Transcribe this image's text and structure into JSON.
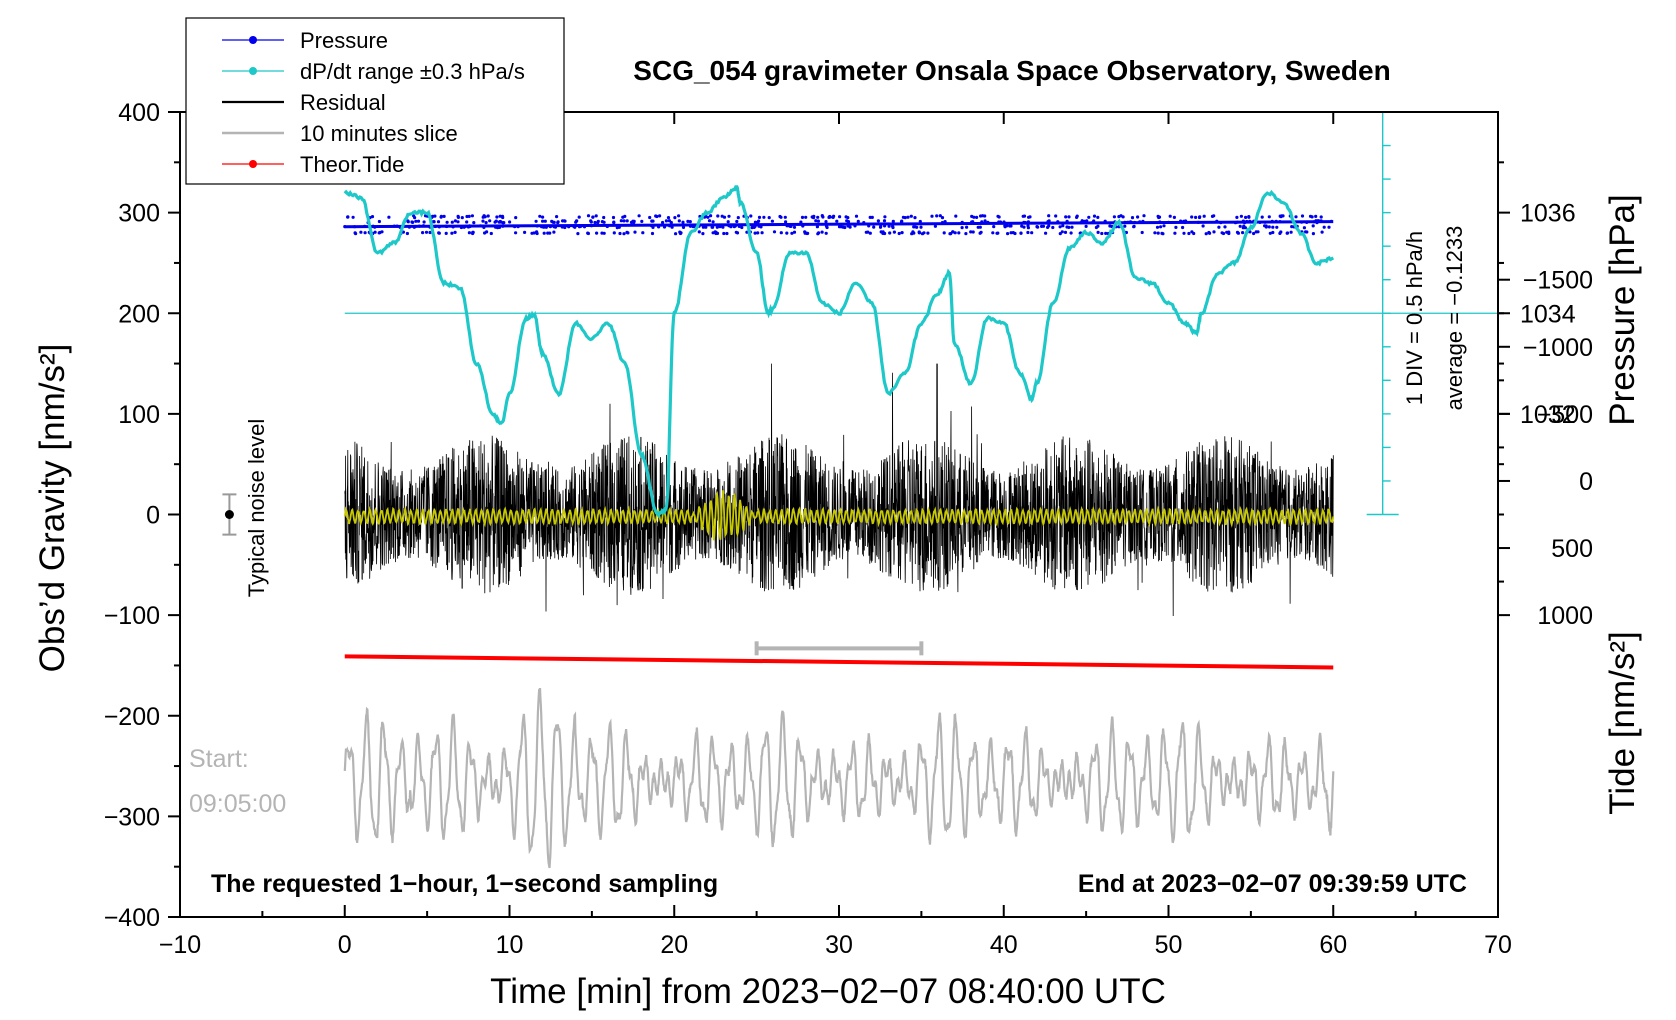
{
  "chart_data": {
    "type": "line",
    "title": "SCG_054 gravimeter Onsala Space Observatory, Sweden",
    "xlabel": "Time [min] from 2023−02−07 08:40:00 UTC",
    "ylabel_left": "Obs’d Gravity [nm/s²]",
    "ylabel_right_top": "Pressure [hPa]",
    "ylabel_right_bottom": "Tide [nm/s²]",
    "xlim": [
      -10,
      70
    ],
    "ylim": [
      -400,
      400
    ],
    "x_ticks": [
      "−10",
      "0",
      "10",
      "20",
      "30",
      "40",
      "50",
      "60",
      "70"
    ],
    "x_tick_values": [
      -10,
      0,
      10,
      20,
      30,
      40,
      50,
      60,
      70
    ],
    "y_ticks": [
      "400",
      "300",
      "200",
      "100",
      "0",
      "−100",
      "−200",
      "−300",
      "−400"
    ],
    "y_tick_values": [
      400,
      300,
      200,
      100,
      0,
      -100,
      -200,
      -300,
      -400
    ],
    "pressure_ticks": [
      "1036",
      "1034",
      "1032"
    ],
    "pressure_tick_values": [
      1036,
      1034,
      1032
    ],
    "pressure_axis_map": {
      "hPa_at_gravity_0": 1030,
      "hPa_per_gravity_unit": 0.02
    },
    "tide_ticks": [
      "1000",
      "500",
      "0",
      "−500",
      "−1000",
      "−1500"
    ],
    "tide_tick_values": [
      1000,
      500,
      0,
      -500,
      -1000,
      -1500
    ],
    "tide_axis_map": {
      "tide_at_gravity_minus100": 1000,
      "tide_per_gravity_unit": 7.5
    },
    "legend": {
      "placement": "top-left",
      "entries": [
        {
          "label": "Pressure",
          "color": "#0000ee",
          "style": "line-dot"
        },
        {
          "label": "dP/dt range ±0.3 hPa/s",
          "color": "#1ec8c8",
          "style": "line-dot"
        },
        {
          "label": "Residual",
          "color": "#000000",
          "style": "line"
        },
        {
          "label": "10 minutes slice",
          "color": "#b4b4b4",
          "style": "line"
        },
        {
          "label": "Theor.Tide",
          "color": "#ff0000",
          "style": "line-dot"
        }
      ]
    },
    "annotations": {
      "bottom_left": "The requested 1−hour, 1−second sampling",
      "bottom_right": "End at 2023−02−07 09:39:59 UTC",
      "start_label": "Start:",
      "start_time": "09:05:00",
      "noise_label": "Typical noise level",
      "dpdt_scale": "1 DIV = 0.5 hPa/h",
      "dpdt_average": "average = −0.1233"
    },
    "noise_bar": {
      "x": -7,
      "center": 0,
      "half_range": 20
    },
    "slice_bar": {
      "x_start": 25,
      "x_end": 35,
      "y": -133
    },
    "dpdt_ref_y": 200,
    "dpdt_scale_axis": {
      "x": 63,
      "y_top": 400,
      "y_bottom": 0,
      "divisions": 12
    },
    "series": [
      {
        "name": "Pressure",
        "color": "#0000ee",
        "y_mean_start": 286,
        "y_mean_end": 291,
        "dot_levels": [
          280,
          286,
          291,
          296
        ]
      },
      {
        "name": "dP/dt range ±0.3 hPa/s",
        "color": "#1ec8c8",
        "x": [
          0,
          1,
          2,
          3,
          4,
          5,
          6,
          7,
          8,
          9,
          9.5,
          10,
          11,
          11.5,
          12,
          13,
          14,
          15,
          16,
          17,
          18,
          19,
          19.5,
          20,
          21,
          22,
          23,
          23.8,
          24,
          25,
          25.7,
          26,
          27,
          28,
          29,
          30,
          31,
          32,
          33,
          34,
          35,
          36,
          36.7,
          37,
          38,
          39,
          40,
          41,
          41.7,
          42,
          43,
          44,
          45,
          46,
          47,
          48,
          49,
          50,
          51,
          51.7,
          52,
          53,
          54,
          55,
          56,
          57,
          58,
          59,
          60
        ],
        "values": [
          320,
          315,
          260,
          270,
          300,
          300,
          230,
          225,
          150,
          100,
          90,
          120,
          195,
          198,
          160,
          120,
          190,
          175,
          190,
          150,
          60,
          0,
          5,
          200,
          280,
          300,
          315,
          325,
          310,
          260,
          200,
          205,
          260,
          260,
          210,
          200,
          230,
          210,
          120,
          140,
          190,
          220,
          240,
          170,
          130,
          195,
          190,
          140,
          115,
          130,
          210,
          265,
          280,
          270,
          290,
          235,
          230,
          210,
          190,
          180,
          200,
          240,
          250,
          285,
          320,
          310,
          280,
          250,
          255
        ]
      },
      {
        "name": "Residual",
        "color": "#000000",
        "amplitude_nm_s2": 100
      },
      {
        "name": "Residual (filtered)",
        "color": "#c8c800",
        "amplitude_nm_s2": 8,
        "burst_window": [
          21,
          25
        ]
      },
      {
        "name": "Theor.Tide",
        "color": "#ff0000",
        "x": [
          0,
          60
        ],
        "values": [
          -141,
          -152
        ]
      },
      {
        "name": "10 minutes slice",
        "color": "#b4b4b4",
        "center_y": -265,
        "amplitude_nm_s2": 60
      }
    ]
  }
}
